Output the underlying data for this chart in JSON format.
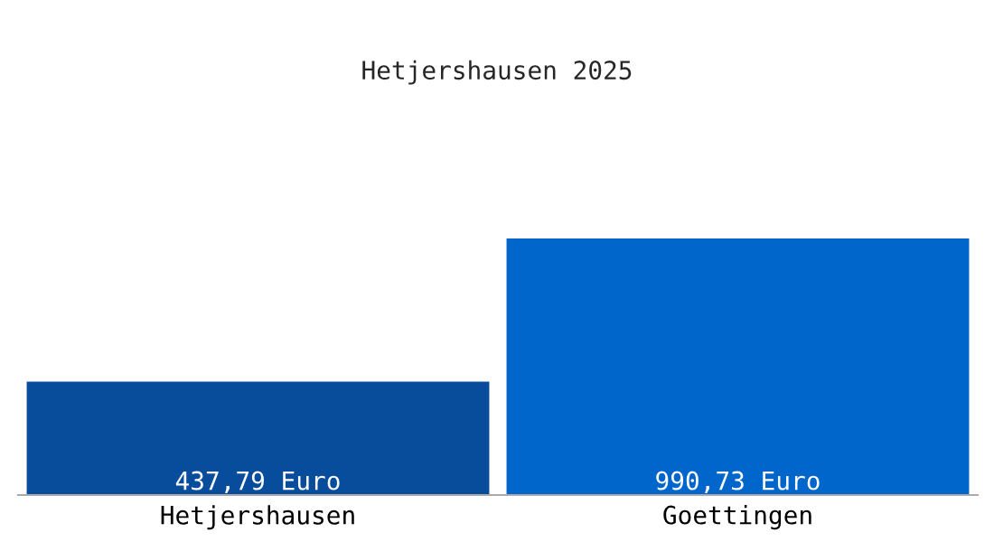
{
  "chart_data": {
    "type": "bar",
    "title": "Hetjershausen 2025",
    "categories": [
      "Hetjershausen",
      "Goettingen"
    ],
    "values": [
      437.79,
      990.73
    ],
    "colors": [
      "#084c9c",
      "#0066cc"
    ],
    "value_labels": [
      "437,79 Euro",
      "990,73 Euro"
    ],
    "tick_labels": "x",
    "grid": false,
    "legend": false
  }
}
